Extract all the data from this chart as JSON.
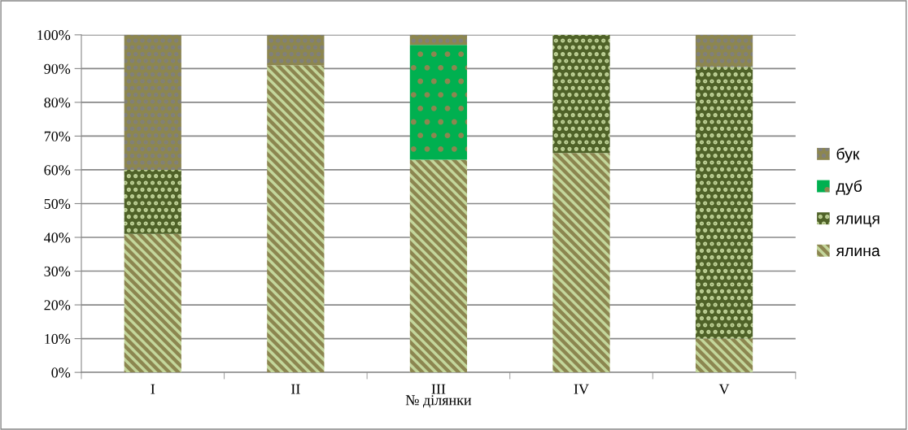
{
  "chart_data": {
    "type": "bar",
    "stacked": true,
    "xlabel": "№ ділянки",
    "categories": [
      "I",
      "II",
      "III",
      "IV",
      "V"
    ],
    "series": [
      {
        "name": "ялина",
        "color": "#8c8650",
        "values": [
          41,
          91,
          63,
          65,
          10
        ]
      },
      {
        "name": "ялиця",
        "color": "#4f6228",
        "values": [
          19,
          0,
          0,
          35,
          80.5
        ]
      },
      {
        "name": "дуб",
        "color": "#00b050",
        "values": [
          0,
          0,
          34,
          0,
          0
        ]
      },
      {
        "name": "бук",
        "color": "#8c8650",
        "values": [
          40,
          9,
          3,
          0,
          9.5
        ]
      }
    ],
    "ylim": [
      0,
      100
    ],
    "yticks": [
      {
        "value": 0,
        "label": "0%"
      },
      {
        "value": 10,
        "label": "10%"
      },
      {
        "value": 20,
        "label": "20%"
      },
      {
        "value": 30,
        "label": "30%"
      },
      {
        "value": 40,
        "label": "40%"
      },
      {
        "value": 50,
        "label": "50%"
      },
      {
        "value": 60,
        "label": "60%"
      },
      {
        "value": 70,
        "label": "70%"
      },
      {
        "value": 80,
        "label": "80%"
      },
      {
        "value": 90,
        "label": "90%"
      },
      {
        "value": 100,
        "label": "100%"
      }
    ],
    "grid": "y",
    "legend": "right"
  }
}
